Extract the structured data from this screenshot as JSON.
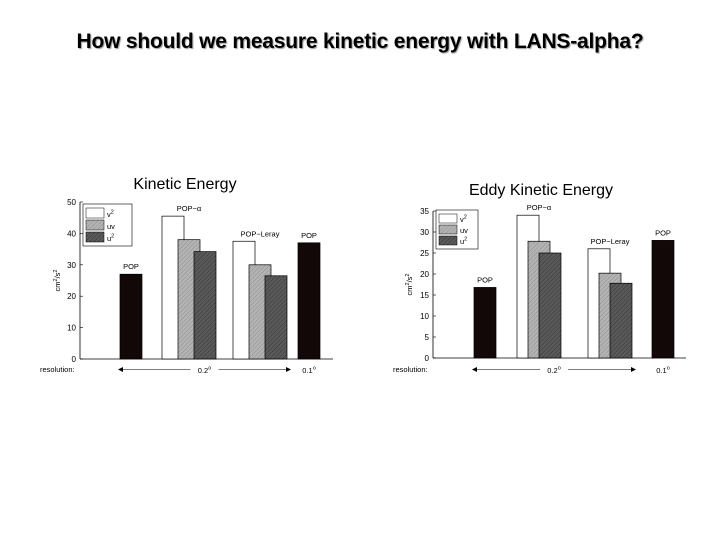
{
  "slide": {
    "title": "How should we measure kinetic energy with LANS-alpha?"
  },
  "chart_data": [
    {
      "type": "bar",
      "title": "Kinetic Energy",
      "ylabel": "cm²/s²",
      "ylim": [
        0,
        50
      ],
      "yticks": [
        0,
        10,
        20,
        30,
        40,
        50
      ],
      "legend": {
        "position": "top-left",
        "entries": [
          "v²",
          "uv",
          "u²"
        ]
      },
      "groups": [
        {
          "label": "POP",
          "values": [
            27
          ]
        },
        {
          "label": "POP−α",
          "values": [
            45.5,
            38,
            34.2
          ]
        },
        {
          "label": "POP−Leray",
          "values": [
            37.5,
            30,
            26.5
          ]
        },
        {
          "label": "POP",
          "values": [
            37
          ]
        }
      ],
      "xaxis": {
        "prefix": "resolution:",
        "coarse": "0.2°",
        "fine": "0.1°"
      }
    },
    {
      "type": "bar",
      "title": "Eddy Kinetic Energy",
      "ylabel": "cm²/s²",
      "ylim": [
        0,
        35
      ],
      "yticks": [
        0,
        5,
        10,
        15,
        20,
        25,
        30,
        35
      ],
      "legend": {
        "position": "top-left",
        "entries": [
          "v²",
          "uv",
          "u²"
        ]
      },
      "groups": [
        {
          "label": "POP",
          "values": [
            16.8
          ]
        },
        {
          "label": "POP−α",
          "values": [
            34,
            27.8,
            25
          ]
        },
        {
          "label": "POP−Leray",
          "values": [
            26,
            20.2,
            17.8
          ]
        },
        {
          "label": "POP",
          "values": [
            28
          ]
        }
      ],
      "xaxis": {
        "prefix": "resolution:",
        "coarse": "0.2°",
        "fine": "0.1°"
      }
    }
  ]
}
